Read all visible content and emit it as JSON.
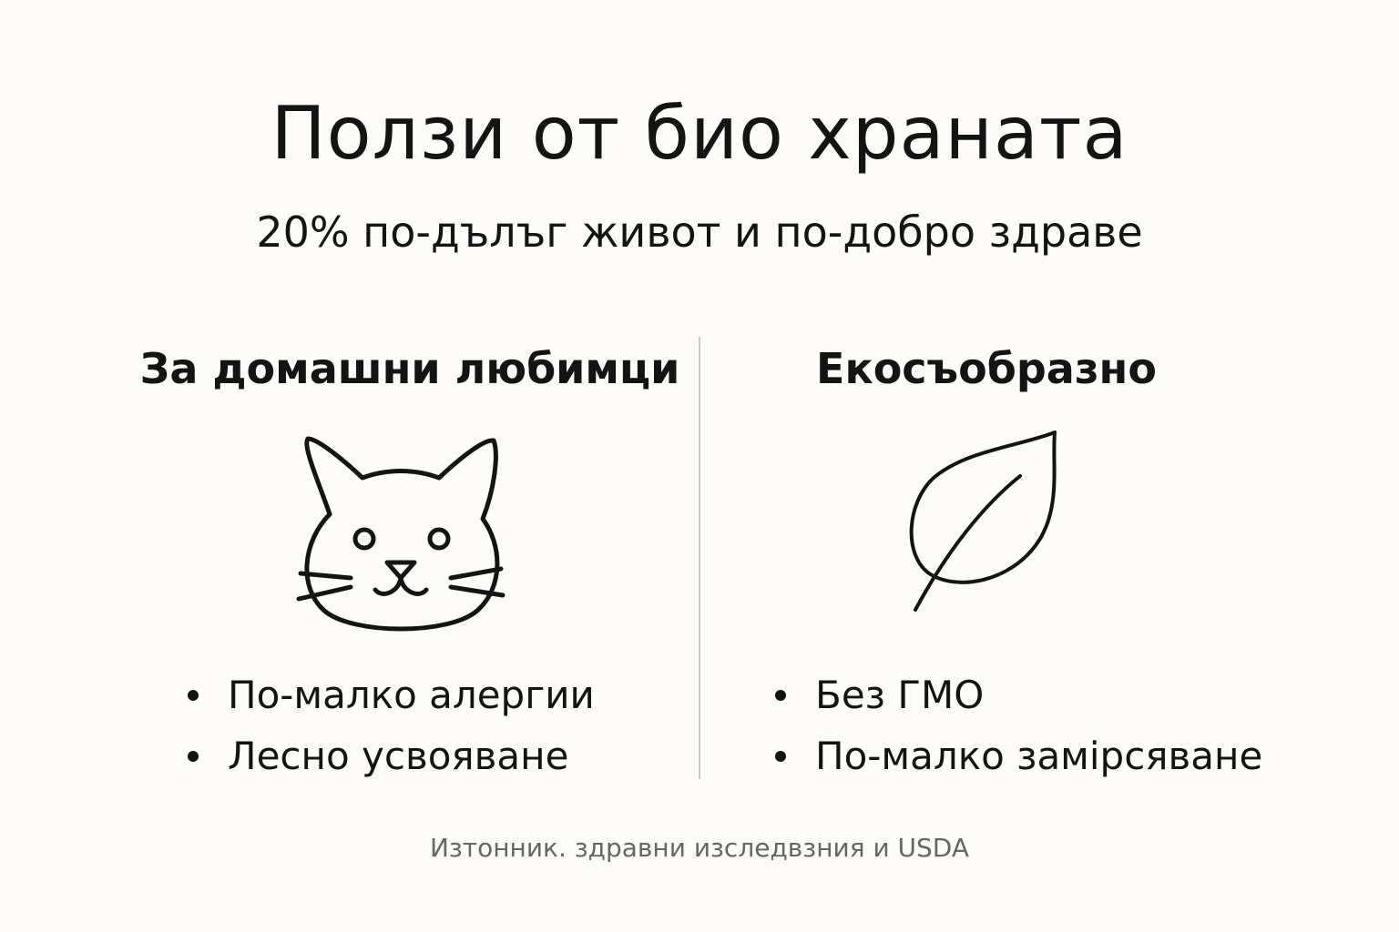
{
  "title": "Ползи от био храната",
  "subtitle": "20% по-дълъг живот и по-добро здраве",
  "columns": [
    {
      "heading": "За домашни любимци",
      "icon": "cat-icon",
      "bullets": [
        "По-малко алергии",
        "Лесно усвояване"
      ]
    },
    {
      "heading": "Екосъобразно",
      "icon": "leaf-icon",
      "bullets": [
        "Без ГМО",
        "По-малко замірсяване"
      ]
    }
  ],
  "footer": "Изтонник. здравни изследвзния и USDA",
  "colors": {
    "background": "#fdfcf8",
    "text": "#141414",
    "footer": "#666666",
    "divider": "#c9c9c6"
  }
}
